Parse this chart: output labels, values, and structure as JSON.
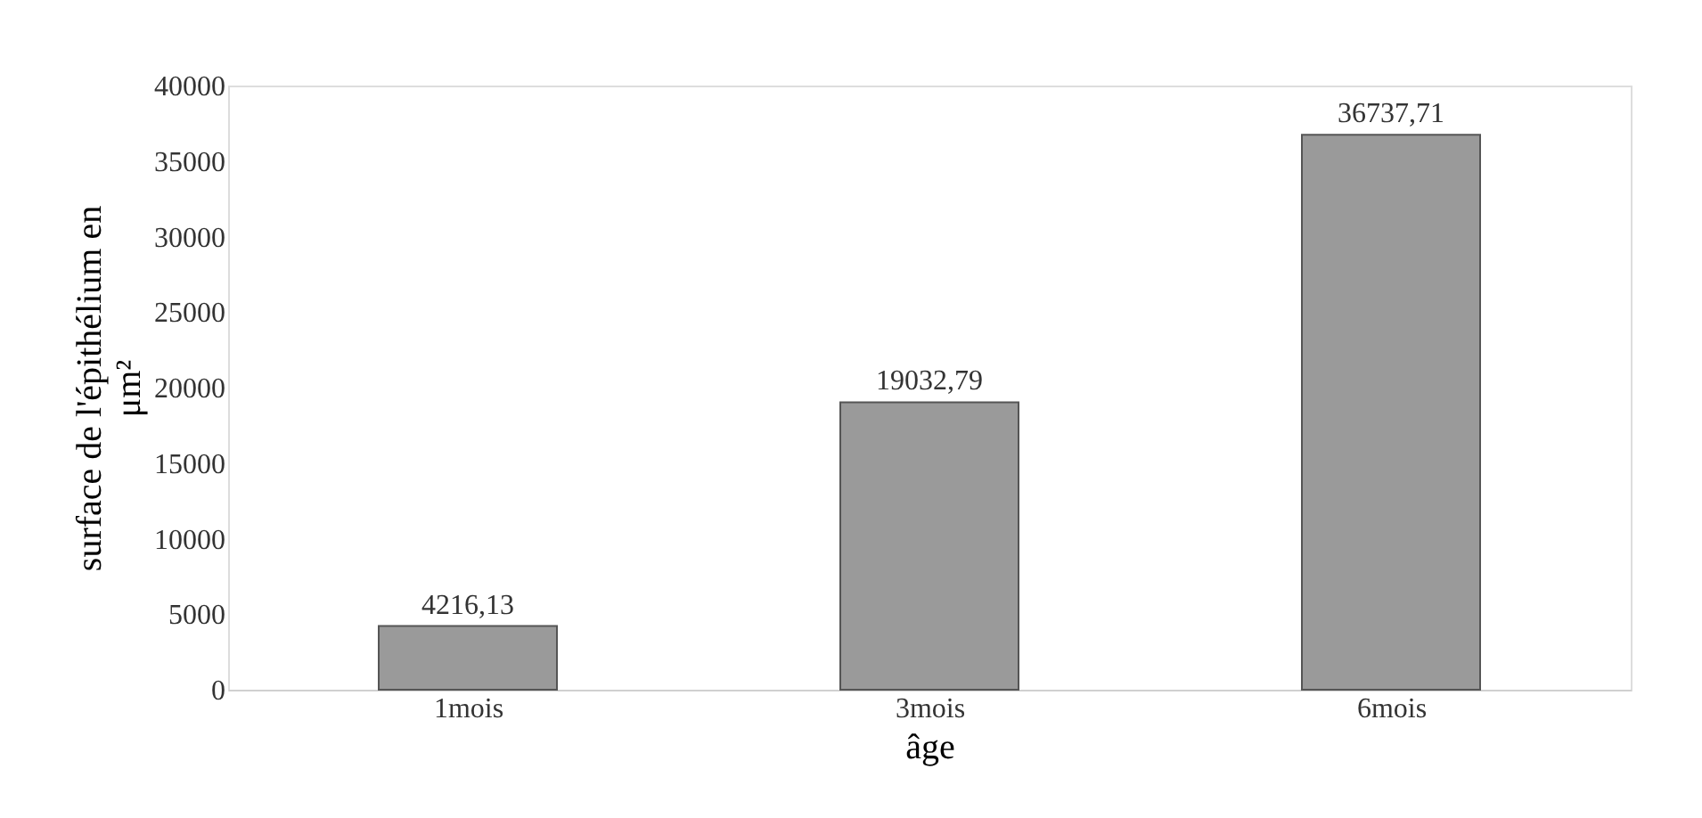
{
  "chart_data": {
    "type": "bar",
    "xlabel": "âge",
    "ylabel": "surface de l'épithélium en μm²",
    "categories": [
      "1mois",
      "3mois",
      "6mois"
    ],
    "values": [
      4216.13,
      19032.79,
      36737.71
    ],
    "value_labels": [
      "4216,13",
      "19032,79",
      "36737,71"
    ],
    "color": "#9a9a9a",
    "ylim": [
      0,
      40000
    ],
    "yticks": [
      0,
      5000,
      10000,
      15000,
      20000,
      25000,
      30000,
      35000,
      40000
    ],
    "grid": false
  }
}
